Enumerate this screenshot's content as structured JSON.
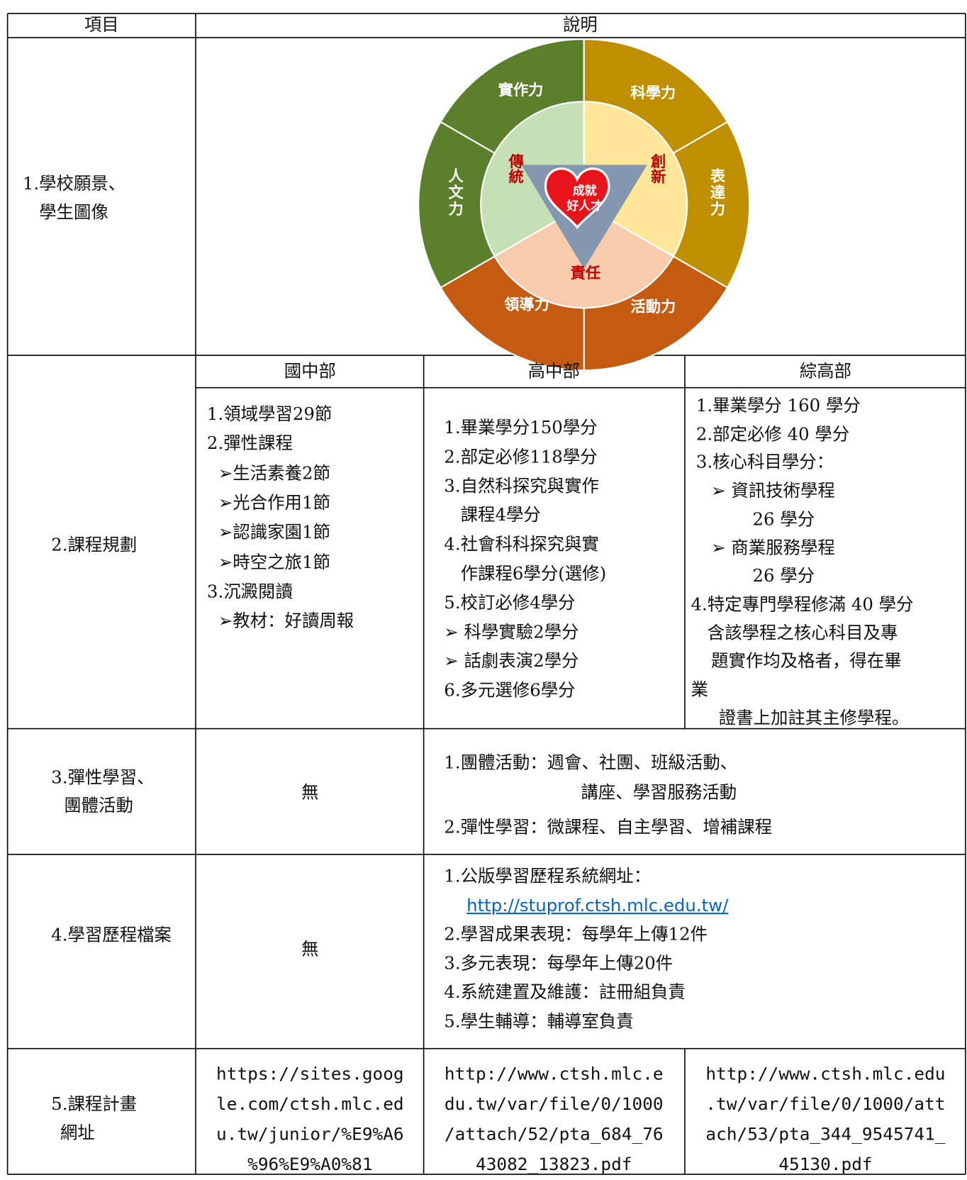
{
  "header": {
    "item": "項目",
    "description": "說明"
  },
  "vision": {
    "item": [
      "1.學校願景、",
      "學生圖像"
    ],
    "diagram": {
      "outer": [
        "實作力",
        "科學力",
        "表達力",
        "活動力",
        "領導力",
        "人文力"
      ],
      "inner": [
        "傳統",
        "創新",
        "責任"
      ],
      "center": [
        "成就",
        "好人才"
      ]
    }
  },
  "planning": {
    "item": [
      "2.課程規劃"
    ],
    "columns": [
      {
        "heading": "國中部",
        "lines": [
          "1.領域學習29節",
          "2.彈性課程",
          "➢生活素養2節",
          "➢光合作用1節",
          "➢認識家園1節",
          "➢時空之旅1節",
          "3.沉澱閱讀",
          "➢教材：好讀周報"
        ]
      },
      {
        "heading": "高中部",
        "lines": [
          "1.畢業學分150學分",
          "2.部定必修118學分",
          "3.自然科探究與實作",
          "課程4學分",
          "4.社會科科探究與實",
          "作課程6學分(選修)",
          "5.校訂必修4學分",
          "➢ 科學實驗2學分",
          "➢ 話劇表演2學分",
          "6.多元選修6學分"
        ]
      },
      {
        "heading": "綜高部",
        "lines": [
          "1.畢業學分 160 學分",
          "2.部定必修 40 學分",
          "3.核心科目學分：",
          "➢ 資訊技術學程",
          "26 學分",
          "➢ 商業服務學程",
          "26 學分",
          "4.特定專門學程修滿 40 學分",
          "含該學程之核心科目及專",
          "題實作均及格者，得在畢",
          "業",
          "證書上加註其主修學程。"
        ]
      }
    ]
  },
  "flexible": {
    "item": [
      "3.彈性學習、",
      "團體活動"
    ],
    "junior": [
      "無"
    ],
    "senior": [
      "1.團體活動：週會、社團、班級活動、",
      "講座、學習服務活動",
      "2.彈性學習：微課程、自主學習、增補課程"
    ]
  },
  "portfolio": {
    "item": [
      "4.學習歷程檔案"
    ],
    "junior": [
      "無"
    ],
    "senior": [
      "1.公版學習歷程系統網址：",
      "http://stuprof.ctsh.mlc.edu.tw/",
      "2.學習成果表現：每學年上傳12件",
      "3.多元表現：每學年上傳20件",
      "4.系統建置及維護：註冊組負責",
      "5.學生輔導：輔導室負責"
    ]
  },
  "plan_urls": {
    "item": [
      "5.課程計畫",
      "網址"
    ],
    "columns": [
      [
        "https://sites.goog",
        "le.com/ctsh.mlc.ed",
        "u.tw/junior/%E9%A6",
        "%96%E9%A0%81"
      ],
      [
        "http://www.ctsh.mlc.e",
        "du.tw/var/file/0/1000",
        "/attach/52/pta_684_76",
        "43082_13823.pdf"
      ],
      [
        "http://www.ctsh.mlc.edu",
        ".tw/var/file/0/1000/att",
        "ach/53/pta_344_9545741_",
        "45130.pdf"
      ]
    ]
  }
}
